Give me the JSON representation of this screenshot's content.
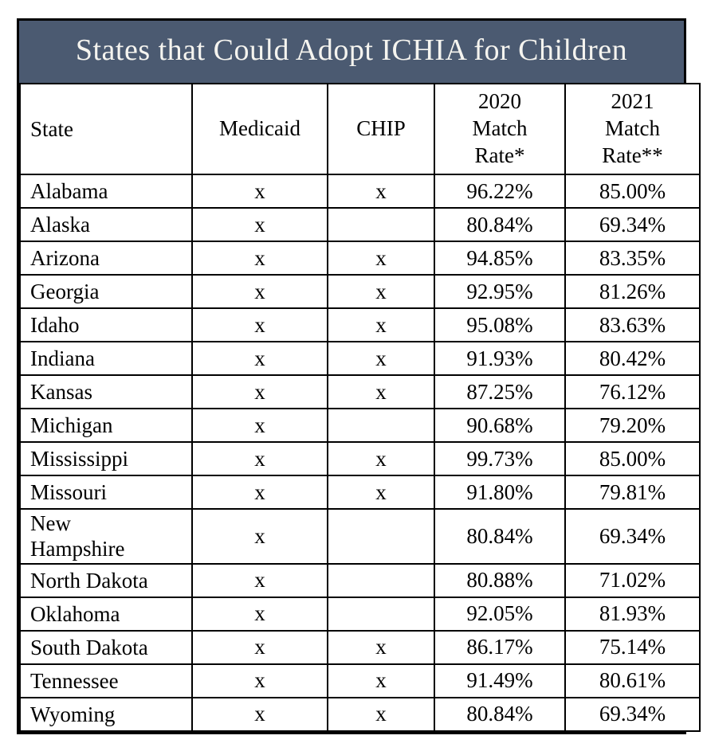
{
  "chart_data": {
    "type": "table",
    "title": "States that Could Adopt ICHIA for Children",
    "columns": [
      {
        "key": "state",
        "label": "State"
      },
      {
        "key": "medicaid",
        "label": "Medicaid"
      },
      {
        "key": "chip",
        "label": "CHIP"
      },
      {
        "key": "rate2020",
        "label": "2020\nMatch\nRate*"
      },
      {
        "key": "rate2021",
        "label": "2021\nMatch\nRate**"
      }
    ],
    "rows": [
      {
        "state": "Alabama",
        "medicaid": "x",
        "chip": "x",
        "rate2020": "96.22%",
        "rate2021": "85.00%"
      },
      {
        "state": "Alaska",
        "medicaid": "x",
        "chip": "",
        "rate2020": "80.84%",
        "rate2021": "69.34%"
      },
      {
        "state": "Arizona",
        "medicaid": "x",
        "chip": "x",
        "rate2020": "94.85%",
        "rate2021": "83.35%"
      },
      {
        "state": "Georgia",
        "medicaid": "x",
        "chip": "x",
        "rate2020": "92.95%",
        "rate2021": "81.26%"
      },
      {
        "state": "Idaho",
        "medicaid": "x",
        "chip": "x",
        "rate2020": "95.08%",
        "rate2021": "83.63%"
      },
      {
        "state": "Indiana",
        "medicaid": "x",
        "chip": "x",
        "rate2020": "91.93%",
        "rate2021": "80.42%"
      },
      {
        "state": "Kansas",
        "medicaid": "x",
        "chip": "x",
        "rate2020": "87.25%",
        "rate2021": "76.12%"
      },
      {
        "state": "Michigan",
        "medicaid": "x",
        "chip": "",
        "rate2020": "90.68%",
        "rate2021": "79.20%"
      },
      {
        "state": "Mississippi",
        "medicaid": "x",
        "chip": "x",
        "rate2020": "99.73%",
        "rate2021": "85.00%"
      },
      {
        "state": "Missouri",
        "medicaid": "x",
        "chip": "x",
        "rate2020": "91.80%",
        "rate2021": "79.81%"
      },
      {
        "state": "New\nHampshire",
        "medicaid": "x",
        "chip": "",
        "rate2020": "80.84%",
        "rate2021": "69.34%"
      },
      {
        "state": "North Dakota",
        "medicaid": "x",
        "chip": "",
        "rate2020": "80.88%",
        "rate2021": "71.02%"
      },
      {
        "state": "Oklahoma",
        "medicaid": "x",
        "chip": "",
        "rate2020": "92.05%",
        "rate2021": "81.93%"
      },
      {
        "state": "South Dakota",
        "medicaid": "x",
        "chip": "x",
        "rate2020": "86.17%",
        "rate2021": "75.14%"
      },
      {
        "state": "Tennessee",
        "medicaid": "x",
        "chip": "x",
        "rate2020": "91.49%",
        "rate2021": "80.61%"
      },
      {
        "state": "Wyoming",
        "medicaid": "x",
        "chip": "x",
        "rate2020": "80.84%",
        "rate2021": "69.34%"
      }
    ],
    "layout": {
      "title_bg_color": "#4b5a71",
      "title_text_color": "#f5f4ef",
      "border_color": "#000000",
      "cell_bg_color": "#ffffff",
      "text_color": "#000000"
    }
  }
}
